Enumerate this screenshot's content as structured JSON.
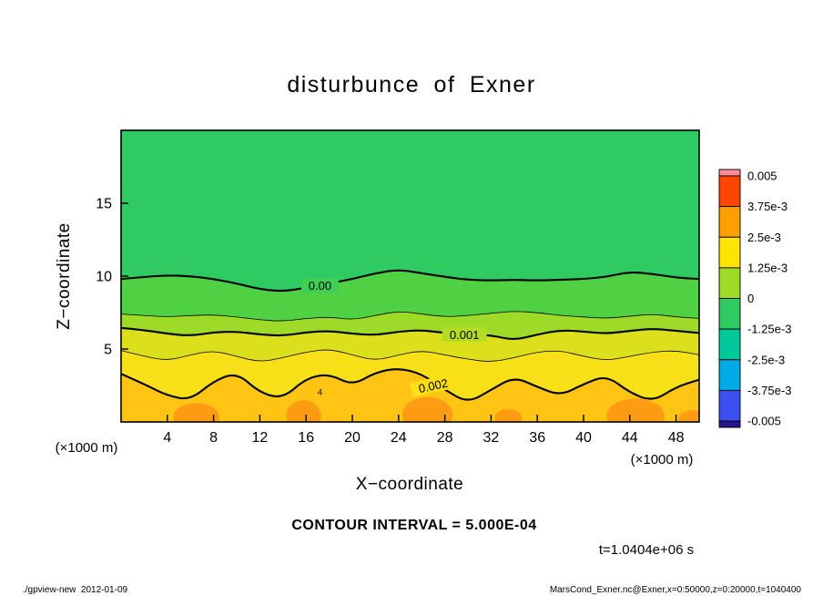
{
  "title": "disturbunce of Exner",
  "contour_interval_text": "CONTOUR INTERVAL = 5.000E-04",
  "time_text": "t=1.0404e+06 s",
  "footer_left": "./gpview-new  2012-01-09",
  "footer_right": "MarsCond_Exner.nc@Exner,x=0:50000,z=0:20000,t=1040400",
  "chart_data": {
    "type": "heatmap",
    "subtype": "filled-contour",
    "title": "disturbunce of Exner",
    "xlabel": "X−coordinate",
    "ylabel": "Z−coordinate",
    "x_unit": "(×1000 m)",
    "y_unit": "(×1000 m)",
    "xlim": [
      0,
      50
    ],
    "ylim": [
      0,
      20
    ],
    "xticks": [
      4,
      8,
      12,
      16,
      20,
      24,
      28,
      32,
      36,
      40,
      44,
      48
    ],
    "yticks": [
      5,
      10,
      15
    ],
    "contour_interval": 0.0005,
    "x_samples": [
      0,
      2,
      4,
      6,
      8,
      10,
      12,
      14,
      16,
      18,
      20,
      22,
      24,
      26,
      28,
      30,
      32,
      34,
      36,
      38,
      40,
      42,
      44,
      46,
      48,
      50
    ],
    "contours": [
      {
        "level": 0.0,
        "thick": true,
        "label": "0.00",
        "label_x": 17.2,
        "label_z": 9.3,
        "label_angle": 0,
        "label_bg": "#40CF54",
        "z": [
          9.8,
          9.95,
          10.05,
          10.0,
          9.8,
          9.5,
          9.1,
          8.95,
          9.2,
          9.5,
          9.8,
          10.2,
          10.45,
          10.2,
          9.95,
          9.75,
          9.7,
          9.75,
          9.7,
          9.75,
          9.8,
          9.95,
          10.3,
          10.15,
          9.9,
          9.8
        ]
      },
      {
        "level": 0.0005,
        "thick": false,
        "z": [
          7.4,
          7.3,
          7.2,
          7.3,
          7.35,
          7.2,
          7.0,
          6.9,
          7.1,
          7.2,
          7.0,
          7.3,
          7.6,
          7.4,
          7.2,
          7.3,
          7.45,
          7.6,
          7.5,
          7.3,
          7.2,
          7.1,
          7.25,
          7.4,
          7.2,
          7.1
        ]
      },
      {
        "level": 0.001,
        "thick": true,
        "label": "0.001",
        "label_x": 29.7,
        "label_z": 5.95,
        "label_angle": 0,
        "label_bg": "#B5DC24",
        "z": [
          6.45,
          6.3,
          6.05,
          5.9,
          6.15,
          6.2,
          6.0,
          5.9,
          6.15,
          6.25,
          6.05,
          5.95,
          6.2,
          6.3,
          6.1,
          6.0,
          5.95,
          5.6,
          6.0,
          6.3,
          6.2,
          6.05,
          6.25,
          6.4,
          6.25,
          6.1
        ]
      },
      {
        "level": 0.0015,
        "thick": false,
        "z": [
          4.9,
          4.5,
          4.2,
          4.6,
          4.9,
          4.5,
          4.1,
          4.4,
          4.8,
          5.0,
          4.6,
          4.2,
          4.6,
          4.9,
          4.6,
          4.3,
          4.1,
          4.4,
          4.8,
          4.9,
          4.5,
          4.2,
          4.5,
          4.8,
          4.9,
          4.6
        ]
      },
      {
        "level": 0.002,
        "thick": true,
        "label": "0.002",
        "label_x": 27.0,
        "label_z": 2.45,
        "label_angle": -12,
        "label_bg": "#FBDF16",
        "z": [
          3.3,
          2.6,
          1.8,
          1.5,
          2.8,
          3.4,
          2.0,
          1.6,
          3.0,
          3.3,
          2.5,
          3.4,
          3.7,
          3.3,
          2.2,
          1.3,
          2.2,
          3.1,
          2.4,
          1.8,
          2.6,
          3.2,
          2.0,
          1.4,
          2.4,
          2.9
        ]
      }
    ],
    "band_colors": [
      "#2FCB62",
      "#50D144",
      "#9EDA28",
      "#DCDF1C",
      "#F8E018",
      "#FFC414"
    ],
    "hot_spot_color": "#FF9C14",
    "hot_spots": [
      {
        "x": 6.5,
        "z": 0.3,
        "rx": 2.0,
        "rz": 1.0
      },
      {
        "x": 15.8,
        "z": 0.4,
        "rx": 1.5,
        "rz": 1.1
      },
      {
        "x": 26.5,
        "z": 0.5,
        "rx": 2.2,
        "rz": 1.2
      },
      {
        "x": 33.5,
        "z": 0.2,
        "rx": 1.2,
        "rz": 0.7
      },
      {
        "x": 44.5,
        "z": 0.4,
        "rx": 2.5,
        "rz": 1.2
      },
      {
        "x": 49.5,
        "z": 0.2,
        "rx": 1.3,
        "rz": 0.6
      }
    ],
    "annotations": [
      {
        "text": "4",
        "x": 17.2,
        "z": 1.85
      }
    ],
    "colorbar": {
      "labels_top_to_bottom": [
        "0.005",
        "3.75e-3",
        "2.5e-3",
        "1.25e-3",
        "0",
        "-1.25e-3",
        "-2.5e-3",
        "-3.75e-3",
        "-0.005"
      ],
      "colors_top_to_bottom": [
        "#FF8C96",
        "#FF4600",
        "#FFA000",
        "#FFE400",
        "#9EDA28",
        "#2FCB62",
        "#00C89B",
        "#00AAE6",
        "#3C50F0",
        "#28148C"
      ]
    }
  }
}
